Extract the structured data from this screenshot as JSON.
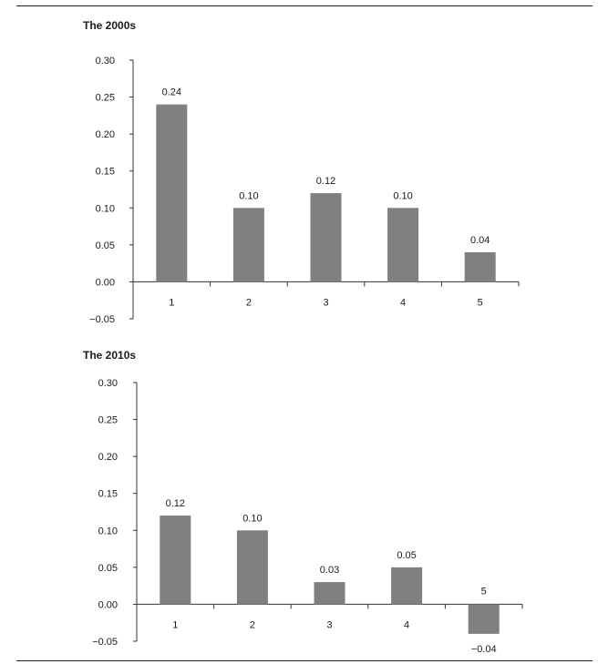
{
  "chart_data": [
    {
      "type": "bar",
      "title": "The 2000s",
      "categories": [
        "1",
        "2",
        "3",
        "4",
        "5"
      ],
      "values": [
        0.24,
        0.1,
        0.12,
        0.1,
        0.04
      ],
      "data_labels": [
        "0.24",
        "0.10",
        "0.12",
        "0.10",
        "0.04"
      ],
      "ylim": [
        -0.05,
        0.3
      ],
      "yticks": [
        "0.30",
        "0.25",
        "0.20",
        "0.15",
        "0.10",
        "0.05",
        "0.00",
        "−0.05"
      ],
      "ytick_values": [
        0.3,
        0.25,
        0.2,
        0.15,
        0.1,
        0.05,
        0.0,
        -0.05
      ],
      "bar_color": "#808080",
      "grid": false,
      "legend": "none"
    },
    {
      "type": "bar",
      "title": "The 2010s",
      "categories": [
        "1",
        "2",
        "3",
        "4",
        "5"
      ],
      "values": [
        0.12,
        0.1,
        0.03,
        0.05,
        -0.04
      ],
      "data_labels": [
        "0.12",
        "0.10",
        "0.03",
        "0.05",
        "−0.04"
      ],
      "ylim": [
        -0.05,
        0.3
      ],
      "yticks": [
        "0.30",
        "0.25",
        "0.20",
        "0.15",
        "0.10",
        "0.05",
        "0.00",
        "−0.05"
      ],
      "ytick_values": [
        0.3,
        0.25,
        0.2,
        0.15,
        0.1,
        0.05,
        0.0,
        -0.05
      ],
      "bar_color": "#808080",
      "grid": false,
      "legend": "none"
    }
  ]
}
